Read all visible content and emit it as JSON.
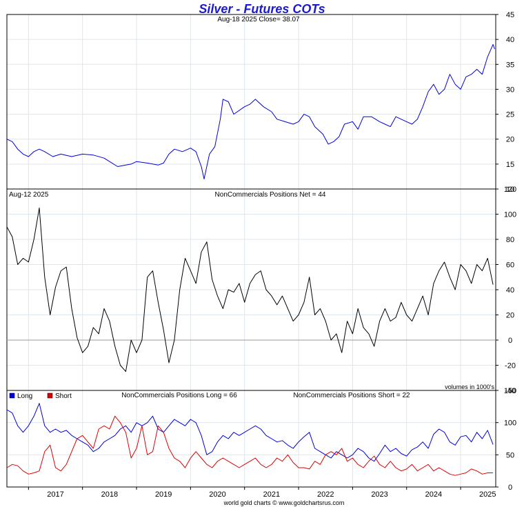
{
  "chart_data": [
    {
      "type": "line",
      "title": "Silver - Futures COTs",
      "subtitle": "Aug-18  2025   Close= 38.07",
      "ylim": [
        10,
        45
      ],
      "yticks": [
        10,
        15,
        20,
        25,
        30,
        35,
        40,
        45
      ],
      "xlim": [
        2016.6,
        2025.65
      ],
      "series": [
        {
          "color": "#0000dd",
          "x": [
            2016.6,
            2016.7,
            2016.8,
            2016.9,
            2017.0,
            2017.1,
            2017.2,
            2017.3,
            2017.45,
            2017.6,
            2017.8,
            2018.0,
            2018.2,
            2018.4,
            2018.5,
            2018.65,
            2018.8,
            2018.9,
            2019.0,
            2019.2,
            2019.4,
            2019.5,
            2019.6,
            2019.7,
            2019.85,
            2020.0,
            2020.1,
            2020.2,
            2020.25,
            2020.35,
            2020.45,
            2020.55,
            2020.6,
            2020.7,
            2020.8,
            2021.0,
            2021.1,
            2021.2,
            2021.35,
            2021.5,
            2021.6,
            2021.75,
            2021.9,
            2022.0,
            2022.1,
            2022.2,
            2022.3,
            2022.45,
            2022.55,
            2022.65,
            2022.75,
            2022.85,
            2023.0,
            2023.1,
            2023.2,
            2023.35,
            2023.5,
            2023.6,
            2023.7,
            2023.8,
            2023.9,
            2024.0,
            2024.1,
            2024.2,
            2024.3,
            2024.4,
            2024.5,
            2024.6,
            2024.7,
            2024.8,
            2024.9,
            2025.0,
            2025.1,
            2025.2,
            2025.3,
            2025.4,
            2025.5,
            2025.6,
            2025.63
          ],
          "y": [
            20,
            19.5,
            18,
            17,
            16.5,
            17.5,
            18,
            17.5,
            16.5,
            17,
            16.5,
            17,
            16.8,
            16.2,
            15.5,
            14.5,
            14.8,
            15,
            15.5,
            15.2,
            14.8,
            15.2,
            17,
            18,
            17.5,
            18.2,
            17.5,
            14.5,
            12,
            17,
            18.5,
            24,
            28,
            27.5,
            25,
            26.5,
            27,
            28,
            26.5,
            25.5,
            24,
            23.5,
            23,
            23.5,
            25,
            24.5,
            22.5,
            21,
            19,
            19.5,
            20.5,
            23,
            23.5,
            22,
            24.5,
            24.5,
            23.5,
            23,
            22.5,
            24.5,
            24,
            23.5,
            23,
            24,
            26.5,
            29.5,
            31,
            29,
            30,
            33,
            31,
            30,
            32.5,
            33,
            34,
            33,
            36.5,
            39,
            38.07
          ]
        }
      ]
    },
    {
      "type": "line",
      "subtitle_left": "Aug-12  2025",
      "subtitle": "NonCommercials Positions Net = 44",
      "note": "volumes in 1000's",
      "ylim": [
        -40,
        120
      ],
      "yticks": [
        -40,
        -20,
        0,
        20,
        40,
        60,
        80,
        100,
        120
      ],
      "xlim": [
        2016.6,
        2025.65
      ],
      "series": [
        {
          "color": "#000000",
          "x": [
            2016.6,
            2016.7,
            2016.8,
            2016.9,
            2017.0,
            2017.1,
            2017.2,
            2017.3,
            2017.4,
            2017.5,
            2017.6,
            2017.7,
            2017.8,
            2017.9,
            2018.0,
            2018.1,
            2018.2,
            2018.3,
            2018.4,
            2018.5,
            2018.6,
            2018.7,
            2018.8,
            2018.9,
            2019.0,
            2019.1,
            2019.2,
            2019.3,
            2019.4,
            2019.5,
            2019.6,
            2019.7,
            2019.8,
            2019.9,
            2020.0,
            2020.1,
            2020.2,
            2020.3,
            2020.4,
            2020.5,
            2020.6,
            2020.7,
            2020.8,
            2020.9,
            2021.0,
            2021.1,
            2021.2,
            2021.3,
            2021.4,
            2021.5,
            2021.6,
            2021.7,
            2021.8,
            2021.9,
            2022.0,
            2022.1,
            2022.2,
            2022.3,
            2022.4,
            2022.5,
            2022.6,
            2022.7,
            2022.8,
            2022.9,
            2023.0,
            2023.1,
            2023.2,
            2023.3,
            2023.4,
            2023.5,
            2023.6,
            2023.7,
            2023.8,
            2023.9,
            2024.0,
            2024.1,
            2024.2,
            2024.3,
            2024.4,
            2024.5,
            2024.6,
            2024.7,
            2024.8,
            2024.9,
            2025.0,
            2025.1,
            2025.2,
            2025.3,
            2025.4,
            2025.5,
            2025.6
          ],
          "y": [
            90,
            82,
            60,
            65,
            62,
            80,
            105,
            50,
            20,
            42,
            55,
            58,
            25,
            2,
            -10,
            -5,
            10,
            5,
            25,
            15,
            -5,
            -20,
            -25,
            0,
            -10,
            0,
            50,
            55,
            30,
            8,
            -18,
            0,
            40,
            65,
            55,
            45,
            70,
            78,
            48,
            35,
            25,
            40,
            38,
            45,
            30,
            45,
            52,
            55,
            40,
            35,
            28,
            35,
            25,
            15,
            20,
            30,
            50,
            20,
            25,
            15,
            0,
            5,
            -10,
            15,
            5,
            25,
            10,
            5,
            -5,
            15,
            25,
            15,
            18,
            30,
            20,
            15,
            25,
            35,
            20,
            45,
            55,
            62,
            50,
            40,
            60,
            55,
            45,
            60,
            55,
            65,
            44
          ]
        }
      ]
    },
    {
      "type": "line",
      "subtitle": "NonCommercials Positions Long = 66",
      "subtitle_right": "NonCommercials Positions Short = 22",
      "legend": [
        {
          "label": "Long",
          "color": "#0000dd"
        },
        {
          "label": "Short",
          "color": "#dd0000"
        }
      ],
      "legend_position": "top-left",
      "ylim": [
        0,
        150
      ],
      "yticks": [
        0,
        50,
        100,
        150
      ],
      "xlim": [
        2016.6,
        2025.65
      ],
      "xticks": [
        "2017",
        "2018",
        "2019",
        "2020",
        "2021",
        "2022",
        "2023",
        "2024",
        "2025"
      ],
      "series": [
        {
          "name": "Long",
          "color": "#0000dd",
          "x": [
            2016.6,
            2016.7,
            2016.8,
            2016.9,
            2017.0,
            2017.1,
            2017.2,
            2017.3,
            2017.4,
            2017.5,
            2017.6,
            2017.7,
            2017.8,
            2017.9,
            2018.0,
            2018.1,
            2018.2,
            2018.3,
            2018.4,
            2018.5,
            2018.6,
            2018.7,
            2018.8,
            2018.9,
            2019.0,
            2019.1,
            2019.2,
            2019.3,
            2019.4,
            2019.5,
            2019.6,
            2019.7,
            2019.8,
            2019.9,
            2020.0,
            2020.1,
            2020.2,
            2020.3,
            2020.4,
            2020.5,
            2020.6,
            2020.7,
            2020.8,
            2020.9,
            2021.0,
            2021.1,
            2021.2,
            2021.3,
            2021.4,
            2021.5,
            2021.6,
            2021.7,
            2021.8,
            2021.9,
            2022.0,
            2022.1,
            2022.2,
            2022.3,
            2022.4,
            2022.5,
            2022.6,
            2022.7,
            2022.8,
            2022.9,
            2023.0,
            2023.1,
            2023.2,
            2023.3,
            2023.4,
            2023.5,
            2023.6,
            2023.7,
            2023.8,
            2023.9,
            2024.0,
            2024.1,
            2024.2,
            2024.3,
            2024.4,
            2024.5,
            2024.6,
            2024.7,
            2024.8,
            2024.9,
            2025.0,
            2025.1,
            2025.2,
            2025.3,
            2025.4,
            2025.5,
            2025.6
          ],
          "y": [
            120,
            115,
            95,
            85,
            95,
            110,
            130,
            95,
            85,
            90,
            85,
            88,
            80,
            75,
            70,
            65,
            55,
            60,
            70,
            75,
            80,
            90,
            95,
            85,
            100,
            95,
            100,
            110,
            90,
            85,
            95,
            105,
            100,
            95,
            105,
            100,
            80,
            50,
            55,
            70,
            80,
            75,
            85,
            80,
            85,
            90,
            95,
            90,
            80,
            75,
            70,
            72,
            65,
            60,
            70,
            78,
            85,
            60,
            55,
            50,
            45,
            55,
            50,
            45,
            50,
            60,
            55,
            45,
            40,
            52,
            65,
            55,
            60,
            52,
            48,
            58,
            62,
            70,
            60,
            82,
            90,
            85,
            70,
            65,
            78,
            80,
            70,
            85,
            75,
            88,
            66
          ]
        },
        {
          "name": "Short",
          "color": "#dd0000",
          "x": [
            2016.6,
            2016.7,
            2016.8,
            2016.9,
            2017.0,
            2017.1,
            2017.2,
            2017.3,
            2017.4,
            2017.5,
            2017.6,
            2017.7,
            2017.8,
            2017.9,
            2018.0,
            2018.1,
            2018.2,
            2018.3,
            2018.4,
            2018.5,
            2018.6,
            2018.7,
            2018.8,
            2018.9,
            2019.0,
            2019.1,
            2019.2,
            2019.3,
            2019.4,
            2019.5,
            2019.6,
            2019.7,
            2019.8,
            2019.9,
            2020.0,
            2020.1,
            2020.2,
            2020.3,
            2020.4,
            2020.5,
            2020.6,
            2020.7,
            2020.8,
            2020.9,
            2021.0,
            2021.1,
            2021.2,
            2021.3,
            2021.4,
            2021.5,
            2021.6,
            2021.7,
            2021.8,
            2021.9,
            2022.0,
            2022.1,
            2022.2,
            2022.3,
            2022.4,
            2022.5,
            2022.6,
            2022.7,
            2022.8,
            2022.9,
            2023.0,
            2023.1,
            2023.2,
            2023.3,
            2023.4,
            2023.5,
            2023.6,
            2023.7,
            2023.8,
            2023.9,
            2024.0,
            2024.1,
            2024.2,
            2024.3,
            2024.4,
            2024.5,
            2024.6,
            2024.7,
            2024.8,
            2024.9,
            2025.0,
            2025.1,
            2025.2,
            2025.3,
            2025.4,
            2025.5,
            2025.6
          ],
          "y": [
            30,
            35,
            33,
            25,
            20,
            22,
            25,
            55,
            65,
            30,
            25,
            35,
            55,
            75,
            80,
            70,
            60,
            90,
            95,
            90,
            110,
            100,
            85,
            45,
            60,
            95,
            50,
            55,
            95,
            85,
            60,
            45,
            40,
            30,
            45,
            55,
            45,
            35,
            30,
            40,
            45,
            40,
            35,
            30,
            35,
            40,
            45,
            35,
            30,
            35,
            45,
            40,
            50,
            38,
            30,
            30,
            28,
            40,
            35,
            50,
            55,
            50,
            60,
            40,
            45,
            35,
            30,
            40,
            48,
            35,
            30,
            40,
            30,
            25,
            28,
            35,
            25,
            30,
            35,
            25,
            30,
            25,
            20,
            18,
            20,
            22,
            28,
            25,
            20,
            22,
            22
          ]
        }
      ]
    }
  ],
  "footer": "world gold charts © www.goldchartsrus.com"
}
